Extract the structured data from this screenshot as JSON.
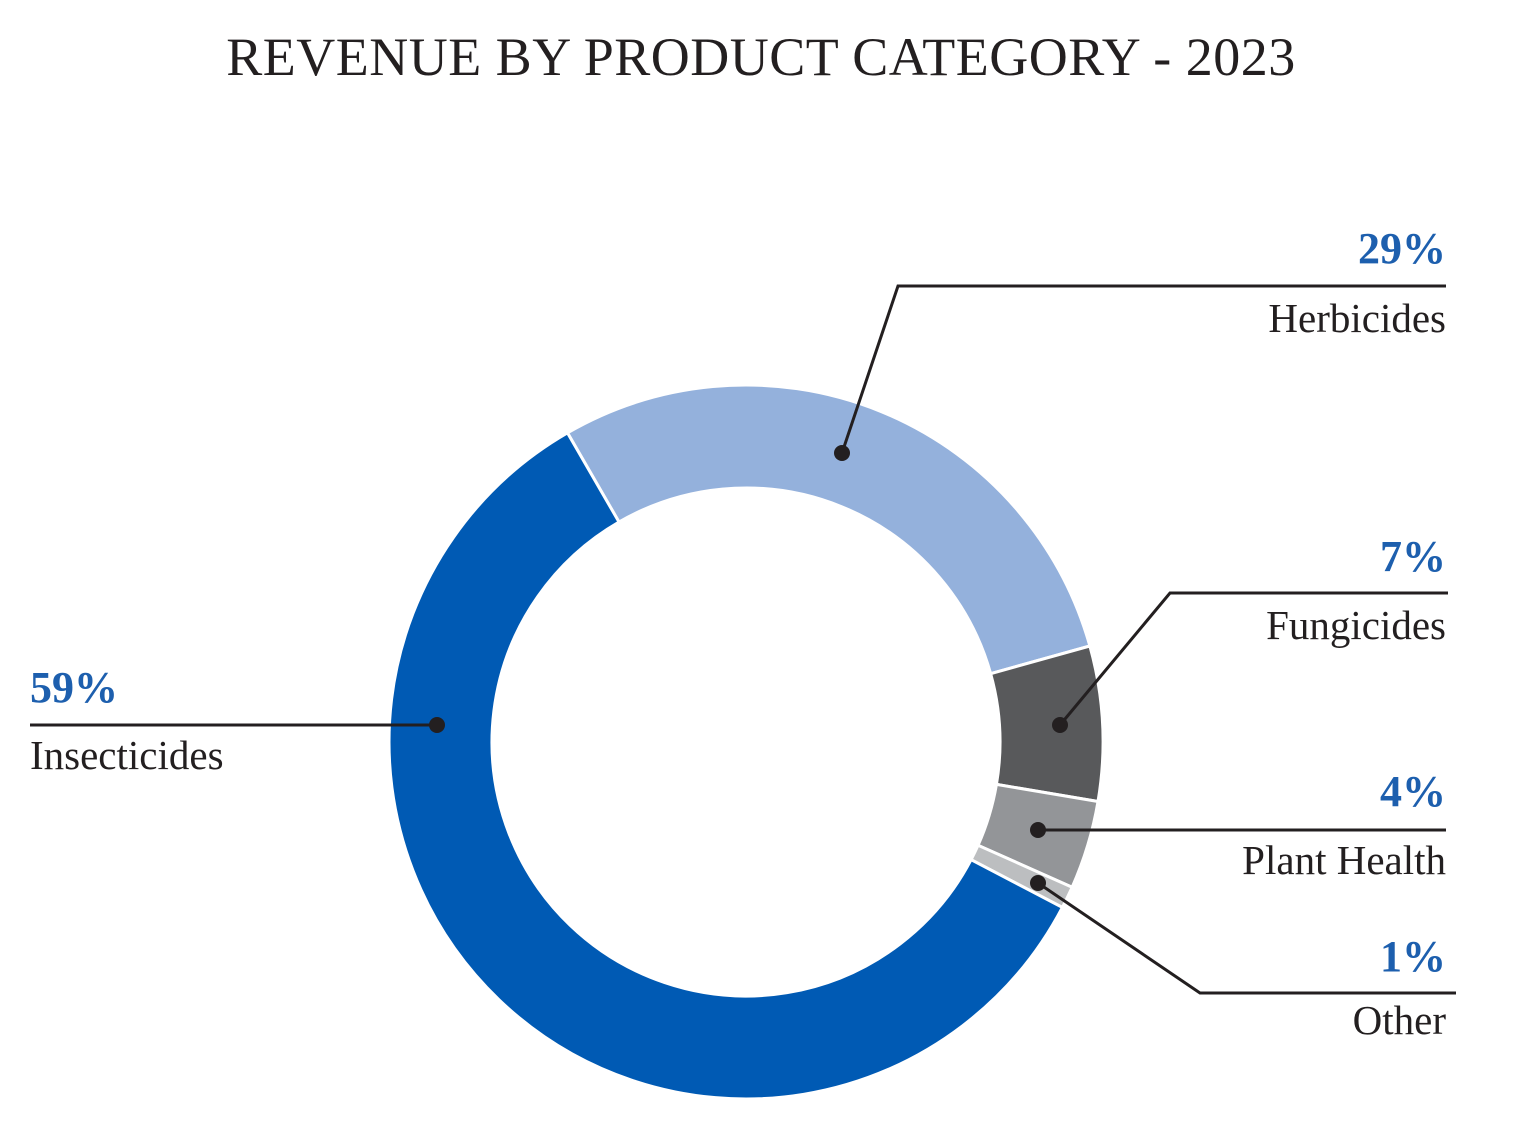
{
  "chart_data": {
    "type": "pie",
    "donut": true,
    "title": "REVENUE BY PRODUCT CATEGORY - 2023",
    "categories": [
      "Herbicides",
      "Fungicides",
      "Plant Health",
      "Other",
      "Insecticides"
    ],
    "values": [
      29,
      7,
      4,
      1,
      59
    ],
    "labels": [
      "29%",
      "7%",
      "4%",
      "1%",
      "59%"
    ],
    "colors": [
      "#94b1dc",
      "#58595b",
      "#939598",
      "#bcbec0",
      "#005ab4"
    ],
    "unit": "%",
    "legend": "none"
  }
}
